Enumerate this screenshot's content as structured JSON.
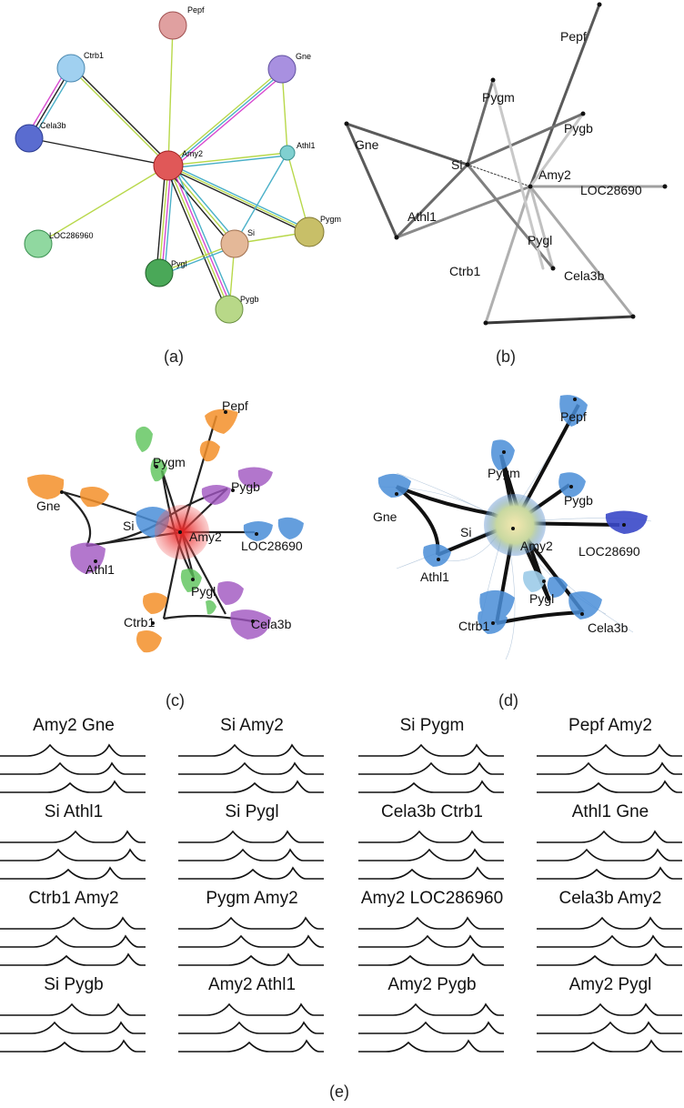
{
  "captions": {
    "a": "(a)",
    "b": "(b)",
    "c": "(c)",
    "d": "(d)",
    "e": "(e)"
  },
  "nodes": {
    "pepf": "Pepf",
    "ctrb1": "Ctrb1",
    "gne": "Gne",
    "cela3b": "Cela3b",
    "amy2": "Amy2",
    "athl1": "Athl1",
    "loc_a": "LOC286960",
    "si": "Si",
    "pygm": "Pygm",
    "pygl": "Pygl",
    "pygb": "Pygb",
    "loc_bcd": "LOC28690"
  },
  "node_colors": {
    "pepf": "#d98c8c",
    "ctrb1": "#8cc4e8",
    "gne": "#9c7fd6",
    "cela3b": "#4a5cc0",
    "amy2": "#e04848",
    "athl1": "#6fc6c6",
    "loc": "#7ccf8c",
    "si": "#d9a88c",
    "pygm": "#bdb35a",
    "pygl": "#3e9e48",
    "pygb": "#a8d07a"
  },
  "bundle_colors": {
    "orange": "#f4902a",
    "green": "#5cc45a",
    "purple": "#a055c0",
    "blue": "#4a8ed8",
    "red": "#e02828"
  },
  "small_multiples": [
    "Amy2 Gne",
    "Si Amy2",
    "Si Pygm",
    "Pepf Amy2",
    "Si Athl1",
    "Si Pygl",
    "Cela3b Ctrb1",
    "Athl1 Gne",
    "Ctrb1 Amy2",
    "Pygm Amy2",
    "Amy2 LOC286960",
    "Cela3b Amy2",
    "Si Pygb",
    "Amy2 Athl1",
    "Amy2 Pygb",
    "Amy2 Pygl"
  ]
}
